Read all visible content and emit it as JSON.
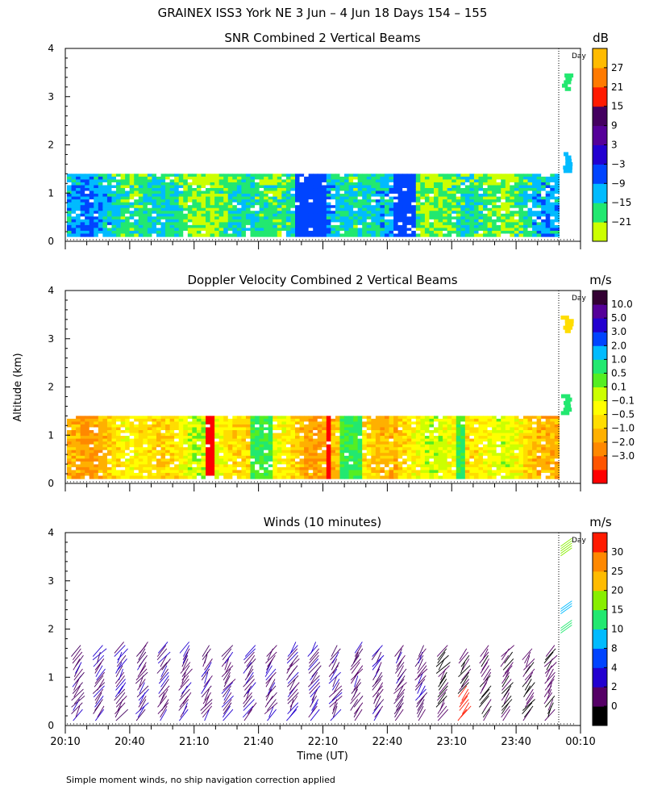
{
  "title": "GRAINEX ISS3 York NE    3 Jun –  4 Jun 18 Days 154 – 155",
  "footnote": "Simple moment winds, no ship navigation correction applied",
  "y_axis_label": "Altitude (km)",
  "x_axis_label": "Time (UT)",
  "day_marker_label": "Day",
  "x_tick_labels": [
    "20:10",
    "20:40",
    "21:10",
    "21:40",
    "22:10",
    "22:40",
    "23:10",
    "23:40",
    "00:10"
  ],
  "y_tick_labels": [
    "0",
    "1",
    "2",
    "3",
    "4"
  ],
  "chart_data": [
    {
      "type": "heatmap",
      "title": "SNR Combined 2 Vertical Beams",
      "xlabel": "",
      "ylabel": "Altitude (km)",
      "xlim": [
        "20:10",
        "00:10"
      ],
      "ylim": [
        0,
        4
      ],
      "colorbar": {
        "unit": "dB",
        "ticks": [
          "27",
          "21",
          "15",
          "9",
          "3",
          "−3",
          "−9",
          "−15",
          "−21"
        ],
        "colors": [
          "#ccff00",
          "#22e870",
          "#00bbff",
          "#0044ff",
          "#2200d0",
          "#550099",
          "#440060",
          "#ff1a00",
          "#ff7a00",
          "#ffbb00"
        ]
      },
      "data_coverage": {
        "time_start": "20:10",
        "time_end": "00:00",
        "alt_min_km": 0.1,
        "alt_max_km": 1.4
      }
    },
    {
      "type": "heatmap",
      "title": "Doppler Velocity Combined 2 Vertical Beams",
      "xlabel": "",
      "ylabel": "Altitude (km)",
      "xlim": [
        "20:10",
        "00:10"
      ],
      "ylim": [
        0,
        4
      ],
      "colorbar": {
        "unit": "m/s",
        "ticks": [
          "10.0",
          "5.0",
          "3.0",
          "2.0",
          "1.0",
          "0.5",
          "0.1",
          "−0.1",
          "−0.5",
          "−1.0",
          "−2.0",
          "−3.0"
        ],
        "colors": [
          "#ff0000",
          "#ff5500",
          "#ff8800",
          "#ffb000",
          "#ffdd00",
          "#ffff00",
          "#ccff00",
          "#55ee22",
          "#22e870",
          "#00bbff",
          "#0044ff",
          "#2200d0",
          "#550099",
          "#330033"
        ]
      },
      "data_coverage": {
        "time_start": "20:10",
        "time_end": "00:00",
        "alt_min_km": 0.1,
        "alt_max_km": 1.4
      }
    },
    {
      "type": "scatter",
      "title": "Winds (10 minutes)",
      "xlabel": "Time (UT)",
      "ylabel": "Altitude (km)",
      "xlim": [
        "20:10",
        "00:10"
      ],
      "ylim": [
        0,
        4
      ],
      "colorbar": {
        "unit": "m/s",
        "ticks": [
          "30",
          "25",
          "20",
          "15",
          "10",
          "8",
          "4",
          "2",
          "0"
        ],
        "colors": [
          "#000000",
          "#550066",
          "#2200d0",
          "#0044ff",
          "#00bbff",
          "#22e870",
          "#88ee00",
          "#ffbb00",
          "#ff8800",
          "#ff1a00"
        ]
      },
      "profile_times": [
        "20:15",
        "20:25",
        "20:35",
        "20:45",
        "20:55",
        "21:05",
        "21:15",
        "21:25",
        "21:35",
        "21:45",
        "21:55",
        "22:05",
        "22:15",
        "22:25",
        "22:35",
        "22:45",
        "22:55",
        "23:05",
        "23:15",
        "23:25",
        "23:35",
        "23:45",
        "23:55"
      ],
      "profile_top_km": [
        1.6,
        1.6,
        1.65,
        1.65,
        1.65,
        1.65,
        1.6,
        1.55,
        1.6,
        1.6,
        1.65,
        1.65,
        1.6,
        1.65,
        1.6,
        1.6,
        1.55,
        1.55,
        1.5,
        1.6,
        1.55,
        1.5,
        1.6
      ]
    }
  ]
}
